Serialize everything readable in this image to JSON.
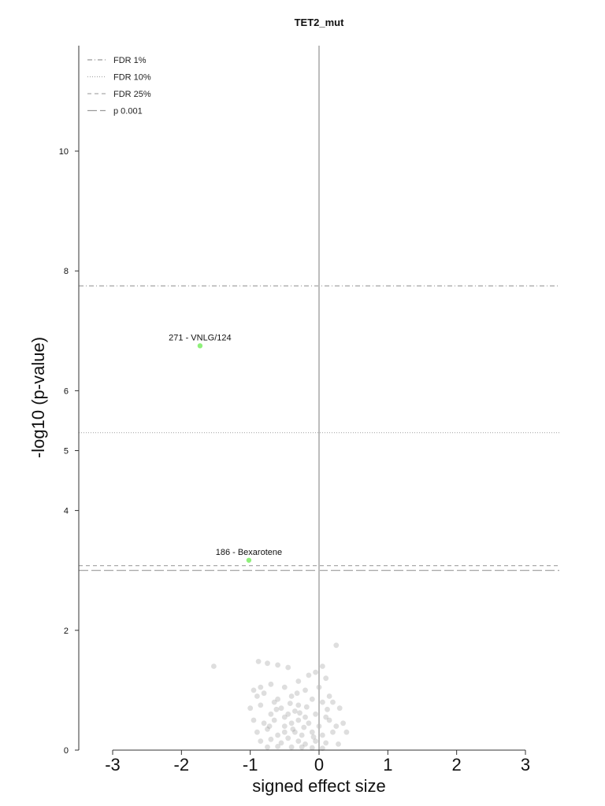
{
  "chart_data": {
    "type": "scatter",
    "title": "TET2_mut",
    "xlabel": "signed effect size",
    "ylabel": "-log10 (p-value)",
    "xlim": [
      -3.5,
      3.5
    ],
    "ylim": [
      0,
      11.7
    ],
    "x_ticks": [
      -3,
      -2,
      -1,
      0,
      1,
      2,
      3
    ],
    "y_ticks": [
      0,
      2,
      4,
      5,
      6,
      8,
      10
    ],
    "grid": false,
    "legend_position": "top-left",
    "thresholds": [
      {
        "name": "FDR 1%",
        "y": 7.75,
        "dash": "6 3 1 3",
        "color": "#999999"
      },
      {
        "name": "FDR 10%",
        "y": 5.3,
        "dash": "1 2",
        "color": "#aaaaaa"
      },
      {
        "name": "FDR 25%",
        "y": 3.08,
        "dash": "5 4",
        "color": "#aaaaaa"
      },
      {
        "name": "p 0.001",
        "y": 3.0,
        "dash": "12 4",
        "color": "#999999"
      }
    ],
    "highlighted_points": [
      {
        "label": "271 - VNLG/124",
        "x": -1.73,
        "y": 6.75,
        "color": "#8ef07a"
      },
      {
        "label": "186 - Bexarotene",
        "x": -1.02,
        "y": 3.17,
        "color": "#8ef07a"
      }
    ],
    "background_points": {
      "color": "#888888",
      "points": [
        [
          -1.53,
          1.4
        ],
        [
          -0.88,
          1.48
        ],
        [
          -0.75,
          1.45
        ],
        [
          -0.6,
          1.42
        ],
        [
          0.25,
          1.75
        ],
        [
          0.05,
          1.4
        ],
        [
          -0.45,
          1.38
        ],
        [
          -0.15,
          1.25
        ],
        [
          -0.05,
          1.3
        ],
        [
          0.1,
          1.2
        ],
        [
          -0.3,
          1.15
        ],
        [
          -0.5,
          1.05
        ],
        [
          -0.95,
          1.0
        ],
        [
          -0.85,
          1.05
        ],
        [
          -0.7,
          1.1
        ],
        [
          -0.2,
          1.0
        ],
        [
          0.0,
          1.05
        ],
        [
          0.15,
          0.9
        ],
        [
          -0.9,
          0.9
        ],
        [
          -0.8,
          0.95
        ],
        [
          -0.6,
          0.85
        ],
        [
          -0.4,
          0.9
        ],
        [
          -0.3,
          0.75
        ],
        [
          -0.1,
          0.85
        ],
        [
          0.05,
          0.8
        ],
        [
          0.2,
          0.8
        ],
        [
          0.3,
          0.7
        ],
        [
          -1.0,
          0.7
        ],
        [
          -0.85,
          0.75
        ],
        [
          -0.7,
          0.6
        ],
        [
          -0.55,
          0.7
        ],
        [
          -0.45,
          0.6
        ],
        [
          -0.35,
          0.65
        ],
        [
          -0.2,
          0.55
        ],
        [
          -0.05,
          0.6
        ],
        [
          0.1,
          0.55
        ],
        [
          -0.95,
          0.5
        ],
        [
          -0.8,
          0.45
        ],
        [
          -0.65,
          0.5
        ],
        [
          -0.5,
          0.4
        ],
        [
          -0.4,
          0.45
        ],
        [
          -0.3,
          0.5
        ],
        [
          -0.15,
          0.45
        ],
        [
          0.0,
          0.4
        ],
        [
          0.15,
          0.5
        ],
        [
          0.25,
          0.4
        ],
        [
          0.35,
          0.45
        ],
        [
          0.4,
          0.3
        ],
        [
          -0.9,
          0.3
        ],
        [
          -0.75,
          0.35
        ],
        [
          -0.6,
          0.25
        ],
        [
          -0.5,
          0.3
        ],
        [
          -0.35,
          0.3
        ],
        [
          -0.25,
          0.25
        ],
        [
          -0.1,
          0.3
        ],
        [
          0.05,
          0.25
        ],
        [
          0.2,
          0.3
        ],
        [
          -0.85,
          0.15
        ],
        [
          -0.7,
          0.18
        ],
        [
          -0.55,
          0.12
        ],
        [
          -0.45,
          0.2
        ],
        [
          -0.3,
          0.15
        ],
        [
          -0.2,
          0.1
        ],
        [
          -0.05,
          0.15
        ],
        [
          0.1,
          0.12
        ],
        [
          0.28,
          0.1
        ],
        [
          -0.75,
          0.05
        ],
        [
          -0.6,
          0.06
        ],
        [
          -0.4,
          0.05
        ],
        [
          -0.25,
          0.05
        ],
        [
          -0.1,
          0.04
        ],
        [
          0.05,
          0.03
        ],
        [
          -0.65,
          0.8
        ],
        [
          -0.5,
          0.55
        ],
        [
          -0.38,
          0.35
        ],
        [
          -0.28,
          0.62
        ],
        [
          -0.18,
          0.72
        ],
        [
          -0.08,
          0.22
        ],
        [
          0.12,
          0.68
        ],
        [
          -0.72,
          0.4
        ],
        [
          -0.62,
          0.68
        ],
        [
          -0.42,
          0.78
        ],
        [
          -0.32,
          0.95
        ],
        [
          -0.22,
          0.38
        ]
      ]
    }
  }
}
